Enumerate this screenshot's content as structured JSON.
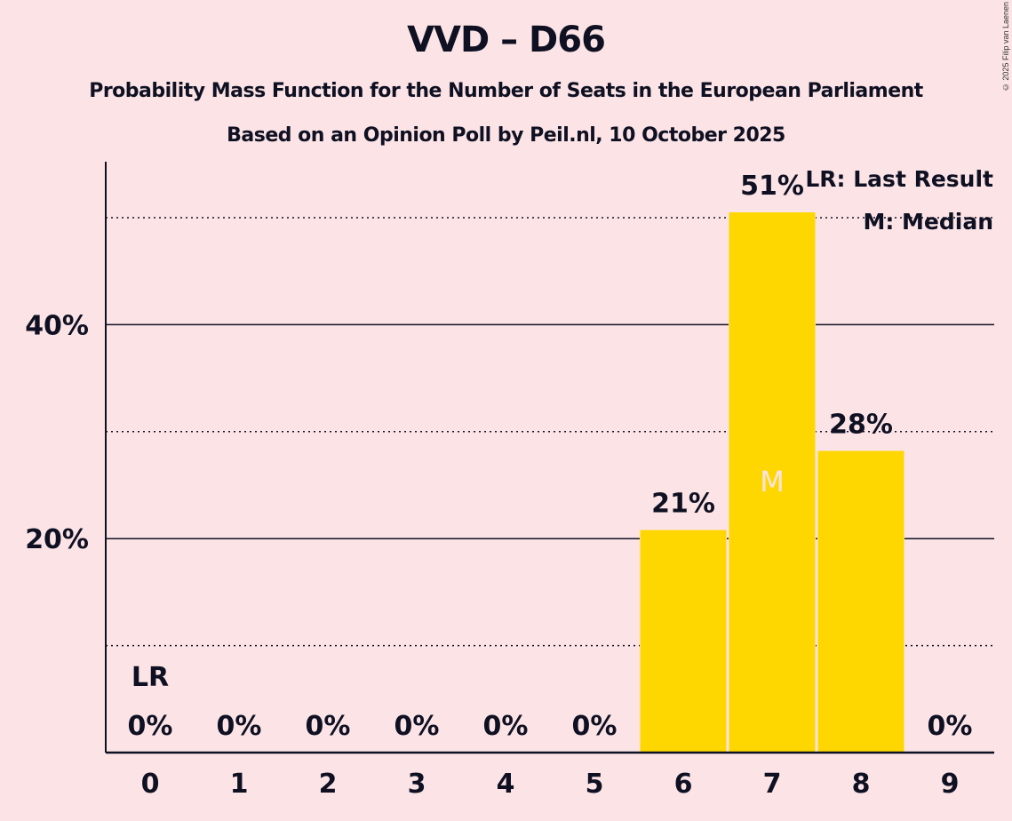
{
  "chart_data": {
    "type": "bar",
    "title": "VVD – D66",
    "subtitle": "Probability Mass Function for the Number of Seats in the European Parliament",
    "subtitle2": "Based on an Opinion Poll by Peil.nl, 10 October 2025",
    "xlabel": "",
    "ylabel": "",
    "categories": [
      "0",
      "1",
      "2",
      "3",
      "4",
      "5",
      "6",
      "7",
      "8",
      "9"
    ],
    "values": [
      0,
      0,
      0,
      0,
      0,
      0,
      20.8,
      50.5,
      28.2,
      0
    ],
    "value_labels": [
      "0%",
      "0%",
      "0%",
      "0%",
      "0%",
      "0%",
      "21%",
      "51%",
      "28%",
      "0%"
    ],
    "ylim": [
      0,
      55
    ],
    "yticks": [
      {
        "value": 20,
        "label": "20%",
        "style": "solid"
      },
      {
        "value": 40,
        "label": "40%",
        "style": "solid"
      }
    ],
    "minor_gridlines": [
      10,
      30,
      50
    ],
    "last_result_index": 0,
    "last_result_marker": "LR",
    "median_index": 7,
    "median_marker": "M",
    "legend": [
      "LR: Last Result",
      "M: Median"
    ],
    "legend_position": "top-right",
    "grid": true,
    "bar_color": "#FFD700",
    "background_color": "#FCE4E6",
    "text_color": "#0F1123"
  },
  "copyright": "© 2025 Filip van Laenen"
}
